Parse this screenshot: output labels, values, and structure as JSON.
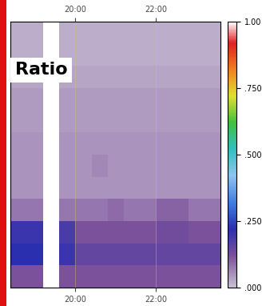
{
  "chart_data": {
    "type": "heatmap",
    "title": "Ratio",
    "xlim": [
      18.4,
      23.6
    ],
    "xticks": [
      {
        "value": 20,
        "label": "20:00"
      },
      {
        "value": 22,
        "label": "22:00"
      }
    ],
    "tick_labels": "x",
    "x_edges": [
      18.4,
      18.8,
      19.2,
      19.6,
      20.0,
      20.4,
      20.8,
      21.2,
      21.6,
      22.0,
      22.4,
      22.8,
      23.2,
      23.6
    ],
    "cells": [
      [
        0.12,
        0.12,
        null,
        0.12,
        0.12,
        0.12,
        0.12,
        0.12,
        0.12,
        0.12,
        0.12,
        0.12,
        0.12
      ],
      [
        0.22,
        0.22,
        null,
        0.2,
        0.15,
        0.15,
        0.15,
        0.15,
        0.15,
        0.15,
        0.15,
        0.15,
        0.15
      ],
      [
        0.2,
        0.2,
        null,
        0.18,
        0.12,
        0.12,
        0.12,
        0.12,
        0.12,
        0.13,
        0.13,
        0.12,
        0.12
      ],
      [
        0.08,
        0.08,
        null,
        0.08,
        0.08,
        0.08,
        0.09,
        0.08,
        0.08,
        0.1,
        0.1,
        0.08,
        0.08
      ],
      [
        0.05,
        0.05,
        null,
        0.05,
        0.05,
        0.05,
        0.05,
        0.05,
        0.05,
        0.05,
        0.05,
        0.05,
        0.05
      ],
      [
        0.05,
        0.05,
        null,
        0.05,
        0.05,
        0.06,
        0.05,
        0.05,
        0.05,
        0.05,
        0.05,
        0.05,
        0.05
      ],
      [
        0.05,
        0.05,
        null,
        0.05,
        0.05,
        0.05,
        0.05,
        0.05,
        0.05,
        0.05,
        0.05,
        0.05,
        0.05
      ],
      [
        0.04,
        0.04,
        null,
        0.04,
        0.04,
        0.04,
        0.04,
        0.04,
        0.04,
        0.04,
        0.04,
        0.04,
        0.04
      ],
      [
        0.04,
        0.04,
        null,
        0.04,
        0.04,
        0.04,
        0.04,
        0.04,
        0.04,
        0.04,
        0.04,
        0.04,
        0.04
      ],
      [
        0.03,
        0.03,
        null,
        0.03,
        0.03,
        0.03,
        0.03,
        0.03,
        0.03,
        0.03,
        0.03,
        0.03,
        0.03
      ],
      [
        0.02,
        0.02,
        null,
        0.02,
        0.02,
        0.02,
        0.02,
        0.02,
        0.02,
        0.02,
        0.02,
        0.02,
        0.02
      ],
      [
        0.02,
        0.02,
        null,
        0.02,
        0.02,
        0.02,
        0.02,
        0.02,
        0.02,
        0.02,
        0.02,
        0.02,
        0.02
      ]
    ],
    "colorbar_range": [
      0,
      1
    ],
    "colorbar_ticks": [
      {
        "value": 0,
        "label": ".000"
      },
      {
        "value": 0.25,
        "label": ".250"
      },
      {
        "value": 0.5,
        "label": ".500"
      },
      {
        "value": 0.75,
        "label": ".750"
      },
      {
        "value": 1,
        "label": "1.00"
      }
    ]
  }
}
